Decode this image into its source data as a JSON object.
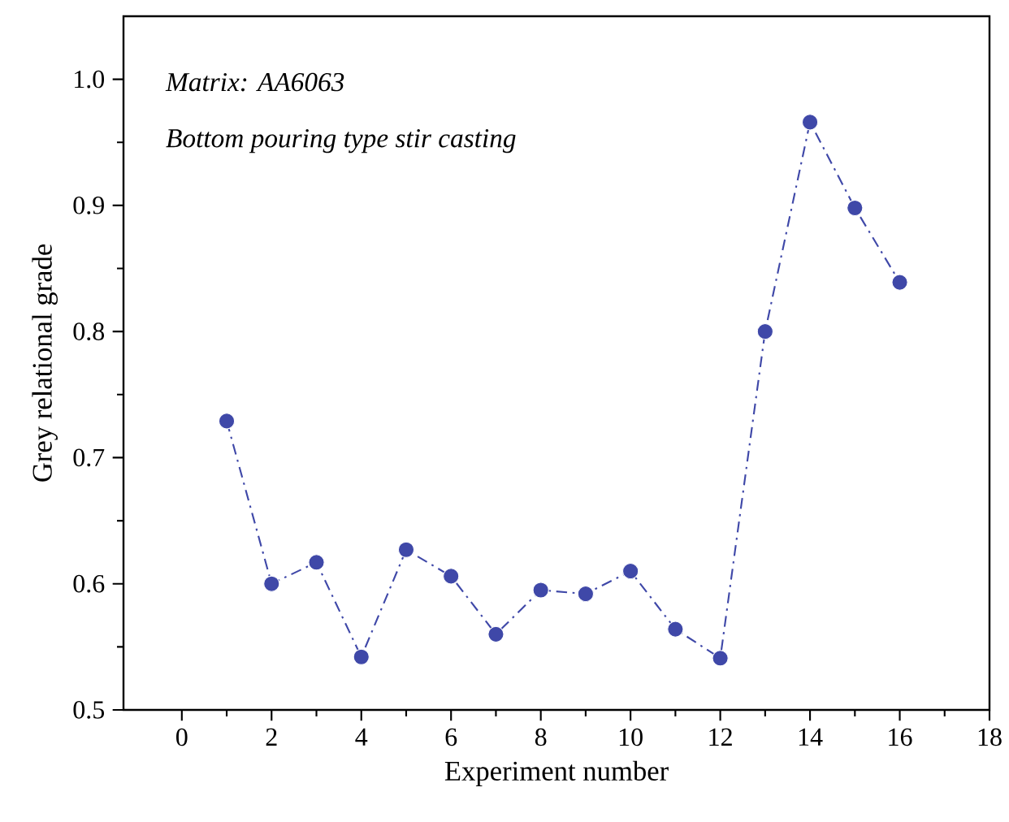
{
  "chart_data": {
    "type": "line",
    "xlabel": "Experiment number",
    "ylabel": "Grey relational grade",
    "annotations": [
      "Matrix: AA6063",
      "Bottom pouring type stir casting"
    ],
    "x": [
      1,
      2,
      3,
      4,
      5,
      6,
      7,
      8,
      9,
      10,
      11,
      12,
      13,
      14,
      15,
      16
    ],
    "series": [
      {
        "color": "#3f48a8",
        "values": [
          0.729,
          0.6,
          0.617,
          0.542,
          0.627,
          0.606,
          0.56,
          0.595,
          0.592,
          0.61,
          0.564,
          0.541,
          0.8,
          0.966,
          0.898,
          0.839
        ]
      }
    ],
    "xlim": [
      -1.3,
      18
    ],
    "xticks": [
      0,
      2,
      4,
      6,
      8,
      10,
      12,
      14,
      16,
      18
    ],
    "ylim": [
      0.5,
      1.05
    ],
    "yticks": [
      {
        "value": 0.5,
        "label": "0.5"
      },
      {
        "value": 0.6,
        "label": "0.6"
      },
      {
        "value": 0.7,
        "label": "0.7"
      },
      {
        "value": 0.8,
        "label": "0.8"
      },
      {
        "value": 0.9,
        "label": "0.9"
      },
      {
        "value": 1.0,
        "label": "1.0"
      }
    ],
    "grid": false,
    "marker": "circle",
    "line_style": "dashdot"
  }
}
